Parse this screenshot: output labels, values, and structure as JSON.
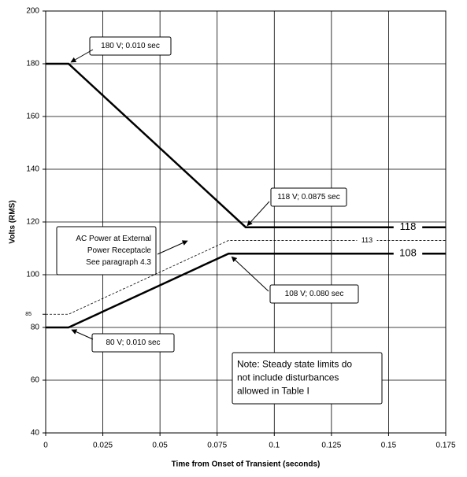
{
  "chart_data": {
    "type": "line",
    "xlabel": "Time from Onset of Transient (seconds)",
    "ylabel": "Volts (RMS)",
    "xlim": [
      0,
      0.175
    ],
    "xticks": [
      0,
      0.025,
      0.05,
      0.075,
      0.1,
      0.125,
      0.15,
      0.175
    ],
    "ylim": [
      40,
      200
    ],
    "yticks": [
      40,
      60,
      80,
      100,
      120,
      140,
      160,
      180,
      200
    ],
    "yticks_minor": [
      85
    ],
    "grid": true,
    "series": [
      {
        "color": "#000000",
        "width": 2.5,
        "dashed": false,
        "x": [
          0,
          0.01,
          0.0875,
          0.175
        ],
        "values": [
          180,
          180,
          118,
          118
        ]
      },
      {
        "color": "#000000",
        "width": 2.5,
        "dashed": false,
        "x": [
          0,
          0.01,
          0.08,
          0.175
        ],
        "values": [
          80,
          80,
          108,
          108
        ]
      },
      {
        "color": "#000000",
        "width": 0.8,
        "dashed": true,
        "x": [
          0,
          0.01,
          0.08,
          0.175
        ],
        "values": [
          85,
          85,
          113,
          113
        ]
      }
    ],
    "annotations": [
      {
        "lines": [
          "180 V; 0.010 sec"
        ]
      },
      {
        "lines": [
          "118 V; 0.0875 sec"
        ]
      },
      {
        "lines": [
          "AC Power at External",
          "Power Receptacle",
          "See paragraph 4.3"
        ]
      },
      {
        "lines": [
          "108 V; 0.080 sec"
        ]
      },
      {
        "lines": [
          "80 V; 0.010 sec"
        ]
      },
      {
        "lines": [
          "Note: Steady state limits do",
          "not include disturbances",
          "allowed in Table I"
        ]
      }
    ]
  }
}
